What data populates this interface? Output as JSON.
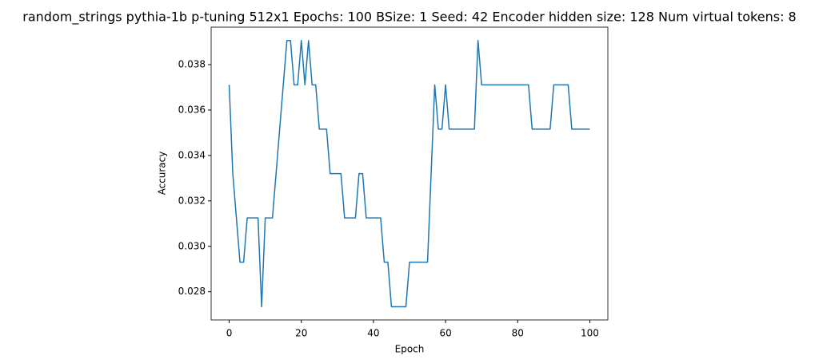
{
  "chart_data": {
    "type": "line",
    "title": "random_strings pythia-1b p-tuning 512x1 Epochs: 100 BSize: 1 Seed: 42 Encoder hidden size: 128 Num virtual tokens: 8",
    "x_label": "Epoch",
    "y_label": "Accuracy",
    "x": [
      0,
      1,
      2,
      3,
      4,
      5,
      6,
      7,
      8,
      9,
      10,
      11,
      12,
      13,
      14,
      15,
      16,
      17,
      18,
      19,
      20,
      21,
      22,
      23,
      24,
      25,
      26,
      27,
      28,
      29,
      30,
      31,
      32,
      33,
      34,
      35,
      36,
      37,
      38,
      39,
      40,
      41,
      42,
      43,
      44,
      45,
      46,
      47,
      48,
      49,
      50,
      51,
      52,
      53,
      54,
      55,
      56,
      57,
      58,
      59,
      60,
      61,
      62,
      63,
      64,
      65,
      66,
      67,
      68,
      69,
      70,
      71,
      72,
      73,
      74,
      75,
      76,
      77,
      78,
      79,
      80,
      81,
      82,
      83,
      84,
      85,
      86,
      87,
      88,
      89,
      90,
      91,
      92,
      93,
      94,
      95,
      96,
      97,
      98,
      99,
      100
    ],
    "series": [
      {
        "color": "#1f77b4",
        "values": [
          0.03711,
          0.0332,
          0.03125,
          0.0293,
          0.0293,
          0.03125,
          0.03125,
          0.03125,
          0.03125,
          0.02734,
          0.03125,
          0.03125,
          0.03125,
          0.0332,
          0.03516,
          0.03711,
          0.03906,
          0.03906,
          0.03711,
          0.03711,
          0.03906,
          0.03711,
          0.03906,
          0.03711,
          0.03711,
          0.03516,
          0.03516,
          0.03516,
          0.0332,
          0.0332,
          0.0332,
          0.0332,
          0.03125,
          0.03125,
          0.03125,
          0.03125,
          0.0332,
          0.0332,
          0.03125,
          0.03125,
          0.03125,
          0.03125,
          0.03125,
          0.0293,
          0.0293,
          0.02734,
          0.02734,
          0.02734,
          0.02734,
          0.02734,
          0.0293,
          0.0293,
          0.0293,
          0.0293,
          0.0293,
          0.0293,
          0.0332,
          0.03711,
          0.03516,
          0.03516,
          0.03711,
          0.03516,
          0.03516,
          0.03516,
          0.03516,
          0.03516,
          0.03516,
          0.03516,
          0.03516,
          0.03906,
          0.03711,
          0.03711,
          0.03711,
          0.03711,
          0.03711,
          0.03711,
          0.03711,
          0.03711,
          0.03711,
          0.03711,
          0.03711,
          0.03711,
          0.03711,
          0.03711,
          0.03516,
          0.03516,
          0.03516,
          0.03516,
          0.03516,
          0.03516,
          0.03711,
          0.03711,
          0.03711,
          0.03711,
          0.03711,
          0.03516,
          0.03516,
          0.03516,
          0.03516,
          0.03516,
          0.03516
        ]
      }
    ],
    "xlim": [
      -5,
      105
    ],
    "xticks": [
      0,
      20,
      40,
      60,
      80,
      100
    ],
    "ylim": [
      0.02676,
      0.03965
    ],
    "yticks": [
      0.028,
      {
        "value": 0.03,
        "label": "0.030"
      },
      0.032,
      0.034,
      0.036,
      0.038
    ]
  }
}
